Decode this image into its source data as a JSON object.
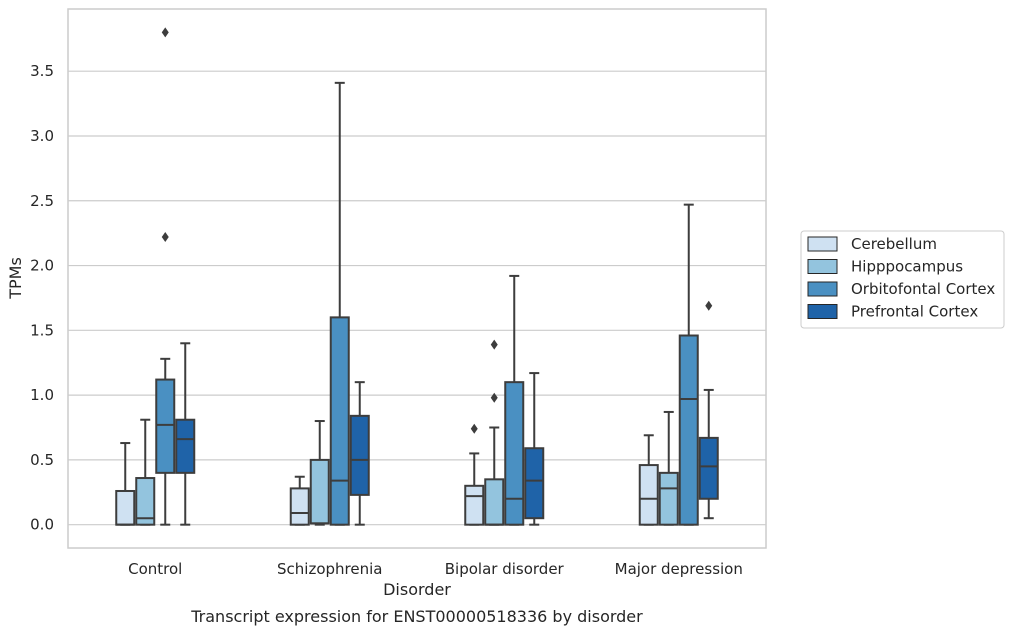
{
  "chart_data": {
    "type": "box",
    "xlabel": "Disorder",
    "ylabel": "TPMs",
    "caption": "Transcript expression for ENST00000518336 by disorder",
    "ylim": [
      -0.18,
      3.98
    ],
    "yticks": [
      "0.0",
      "0.5",
      "1.0",
      "1.5",
      "2.0",
      "2.5",
      "3.0",
      "3.5"
    ],
    "grid": "horizontal",
    "legend_position": "right",
    "categories": [
      "Control",
      "Schizophrenia",
      "Bipolar disorder",
      "Major depression"
    ],
    "series": [
      {
        "name": "Cerebellum",
        "color": "#cfe1f2",
        "boxes": [
          {
            "whislo": 0.0,
            "q1": 0.0,
            "med": 0.0,
            "q3": 0.26,
            "whishi": 0.63,
            "fliers": []
          },
          {
            "whislo": 0.0,
            "q1": 0.0,
            "med": 0.09,
            "q3": 0.28,
            "whishi": 0.37,
            "fliers": []
          },
          {
            "whislo": 0.0,
            "q1": 0.0,
            "med": 0.22,
            "q3": 0.3,
            "whishi": 0.55,
            "fliers": [
              0.74
            ]
          },
          {
            "whislo": 0.0,
            "q1": 0.0,
            "med": 0.2,
            "q3": 0.46,
            "whishi": 0.69,
            "fliers": []
          }
        ]
      },
      {
        "name": "Hipppocampus",
        "color": "#93c4de",
        "boxes": [
          {
            "whislo": 0.0,
            "q1": 0.0,
            "med": 0.05,
            "q3": 0.36,
            "whishi": 0.81,
            "fliers": []
          },
          {
            "whislo": 0.0,
            "q1": 0.01,
            "med": 0.01,
            "q3": 0.5,
            "whishi": 0.8,
            "fliers": []
          },
          {
            "whislo": 0.0,
            "q1": 0.0,
            "med": 0.0,
            "q3": 0.35,
            "whishi": 0.75,
            "fliers": [
              0.98,
              1.39
            ]
          },
          {
            "whislo": 0.0,
            "q1": 0.0,
            "med": 0.28,
            "q3": 0.4,
            "whishi": 0.87,
            "fliers": []
          }
        ]
      },
      {
        "name": "Orbitofontal Cortex",
        "color": "#4a90c2",
        "boxes": [
          {
            "whislo": 0.0,
            "q1": 0.4,
            "med": 0.77,
            "q3": 1.12,
            "whishi": 1.28,
            "fliers": [
              2.22,
              3.8
            ]
          },
          {
            "whislo": 0.0,
            "q1": 0.0,
            "med": 0.34,
            "q3": 1.6,
            "whishi": 3.41,
            "fliers": []
          },
          {
            "whislo": 0.0,
            "q1": 0.0,
            "med": 0.2,
            "q3": 1.1,
            "whishi": 1.92,
            "fliers": []
          },
          {
            "whislo": 0.0,
            "q1": 0.0,
            "med": 0.97,
            "q3": 1.46,
            "whishi": 2.47,
            "fliers": []
          }
        ]
      },
      {
        "name": "Prefrontal Cortex",
        "color": "#1f63a8",
        "boxes": [
          {
            "whislo": 0.0,
            "q1": 0.4,
            "med": 0.66,
            "q3": 0.81,
            "whishi": 1.4,
            "fliers": []
          },
          {
            "whislo": 0.0,
            "q1": 0.23,
            "med": 0.5,
            "q3": 0.84,
            "whishi": 1.1,
            "fliers": []
          },
          {
            "whislo": 0.0,
            "q1": 0.05,
            "med": 0.34,
            "q3": 0.59,
            "whishi": 1.17,
            "fliers": []
          },
          {
            "whislo": 0.05,
            "q1": 0.2,
            "med": 0.45,
            "q3": 0.67,
            "whishi": 1.04,
            "fliers": [
              1.69
            ]
          }
        ]
      }
    ]
  }
}
